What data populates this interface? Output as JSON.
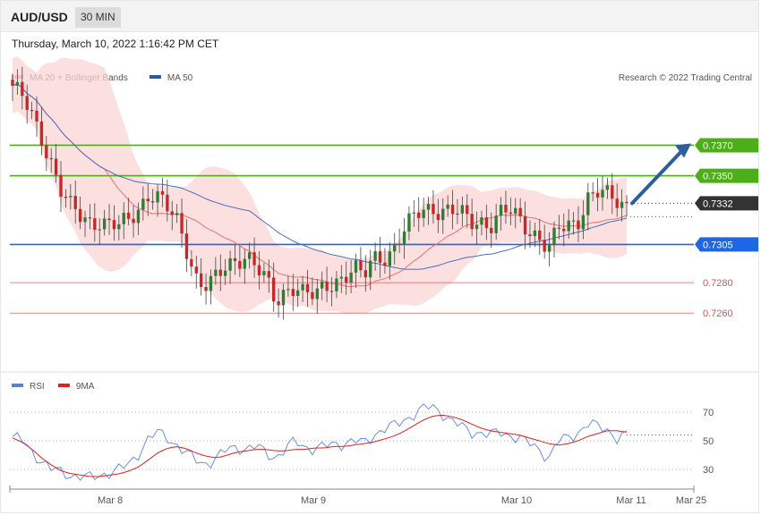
{
  "header": {
    "symbol": "AUD/USD",
    "timeframe": "30 MIN",
    "datetime": "Thursday, March 10, 2022 1:16:42 PM CET"
  },
  "legend_main": [
    {
      "label": "MA 20 + Bollinger Bands",
      "color": "#f08080"
    },
    {
      "label": "MA 50",
      "color": "#2c5aa0"
    }
  ],
  "copyright": "Research © 2022 Trading Central",
  "legend_rsi": [
    {
      "label": "RSI",
      "color": "#5b7fd6"
    },
    {
      "label": "9MA",
      "color": "#e02020"
    }
  ],
  "colors": {
    "bull": "#2e7d32",
    "bear": "#c62828",
    "resistance": "#4caf1a",
    "support": "#1e66e6",
    "minor": "#e05050",
    "arrow": "#2c5f9e",
    "band": "#fbd4d4"
  },
  "chart_data": [
    {
      "type": "candlestick",
      "ylim": [
        0.7225,
        0.743
      ],
      "levels": [
        {
          "value": 0.737,
          "label": "0.7370",
          "kind": "resistance"
        },
        {
          "value": 0.735,
          "label": "0.7350",
          "kind": "resistance"
        },
        {
          "value": 0.7332,
          "label": "0.7332",
          "kind": "last"
        },
        {
          "value": 0.7305,
          "label": "0.7305",
          "kind": "support"
        },
        {
          "value": 0.728,
          "label": "0.7280",
          "kind": "minor"
        },
        {
          "value": 0.726,
          "label": "0.7260",
          "kind": "minor"
        }
      ],
      "price_path": [
        0.7409,
        0.74,
        0.7388,
        0.7375,
        0.736,
        0.734,
        0.7328,
        0.7322,
        0.732,
        0.7322,
        0.7318,
        0.7316,
        0.732,
        0.733,
        0.734,
        0.7336,
        0.7326,
        0.7318,
        0.73,
        0.7282,
        0.7278,
        0.7282,
        0.729,
        0.7296,
        0.73,
        0.729,
        0.728,
        0.7266,
        0.7276,
        0.728,
        0.7272,
        0.727,
        0.7276,
        0.7282,
        0.7285,
        0.7289,
        0.7282,
        0.7296,
        0.7298,
        0.7302,
        0.7312,
        0.732,
        0.7328,
        0.733,
        0.7328,
        0.7326,
        0.7324,
        0.732,
        0.7322,
        0.7318,
        0.7324,
        0.7326,
        0.7322,
        0.7316,
        0.731,
        0.73,
        0.7314,
        0.7318,
        0.7322,
        0.7336,
        0.7338,
        0.7336,
        0.7334,
        0.7332
      ],
      "xlabels": [
        "Mar 8",
        "Mar 9",
        "Mar 10",
        "Mar 11",
        "Mar 25"
      ],
      "projection_target": 0.737
    },
    {
      "type": "line",
      "title": "RSI",
      "ylim": [
        20,
        80
      ],
      "yticks": [
        70,
        50,
        30
      ],
      "rsi": [
        53,
        50,
        42,
        36,
        30,
        28,
        26,
        25,
        24,
        26,
        28,
        30,
        34,
        42,
        52,
        56,
        52,
        46,
        40,
        36,
        34,
        38,
        44,
        46,
        44,
        46,
        42,
        38,
        44,
        50,
        46,
        44,
        46,
        48,
        48,
        50,
        48,
        54,
        58,
        60,
        64,
        68,
        72,
        74,
        70,
        64,
        60,
        56,
        56,
        54,
        56,
        54,
        52,
        48,
        44,
        38,
        50,
        52,
        56,
        62,
        60,
        58,
        52,
        54
      ],
      "ma9": [
        52,
        49,
        44,
        38,
        33,
        29,
        27,
        26,
        25,
        25,
        26,
        27,
        29,
        32,
        37,
        42,
        45,
        46,
        44,
        41,
        39,
        38,
        40,
        42,
        43,
        44,
        44,
        43,
        43,
        44,
        44,
        45,
        45,
        46,
        46,
        47,
        48,
        49,
        51,
        53,
        56,
        60,
        64,
        67,
        68,
        67,
        65,
        62,
        59,
        57,
        56,
        55,
        54,
        52,
        50,
        48,
        47,
        48,
        50,
        53,
        55,
        57,
        57,
        56
      ]
    }
  ]
}
